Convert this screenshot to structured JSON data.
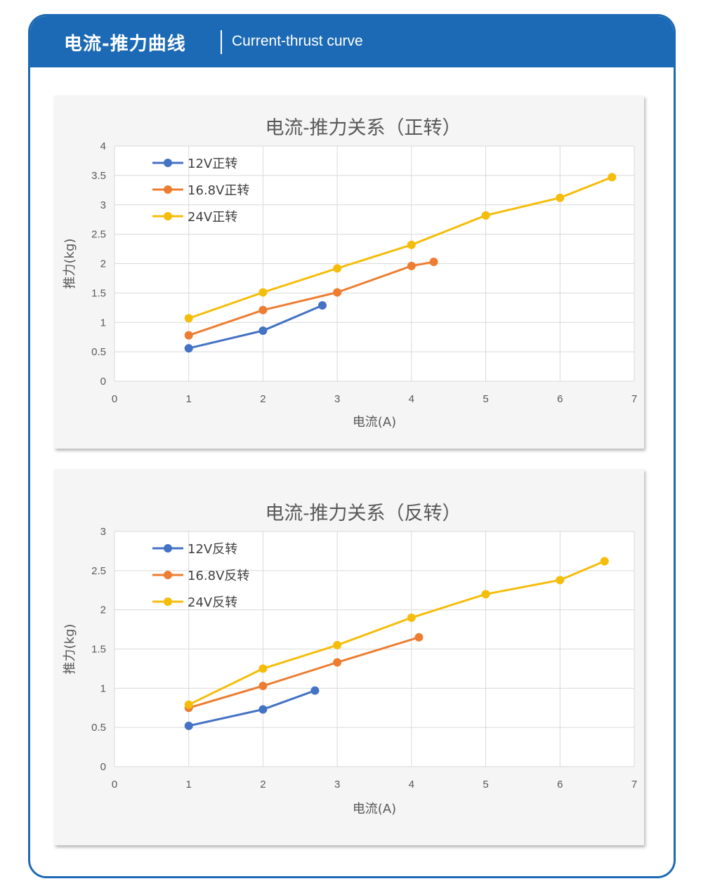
{
  "header": {
    "title_cn": "电流-推力曲线",
    "title_en": "Current-thrust curve"
  },
  "colors": {
    "brand_blue": "#1c6ab5",
    "series_blue": "#4472c4",
    "series_orange": "#ed7d31",
    "series_yellow": "#f5bd0b"
  },
  "chart_data": [
    {
      "type": "line",
      "title": "电流-推力关系（正转）",
      "xlabel": "电流(A)",
      "ylabel": "推力(kg)",
      "xlim": [
        0,
        7
      ],
      "ylim": [
        0,
        4
      ],
      "xticks": [
        "0",
        "1",
        "2",
        "3",
        "4",
        "5",
        "6",
        "7"
      ],
      "yticks": [
        "0",
        "0.5",
        "1",
        "1.5",
        "2",
        "2.5",
        "3",
        "3.5",
        "4"
      ],
      "grid": true,
      "legend_position": "top-left",
      "series": [
        {
          "name": "12V正转",
          "color": "#4472c4",
          "x": [
            1,
            2,
            2.8
          ],
          "y": [
            0.56,
            0.86,
            1.29
          ]
        },
        {
          "name": "16.8V正转",
          "color": "#ed7d31",
          "x": [
            1,
            2,
            3,
            4,
            4.3
          ],
          "y": [
            0.78,
            1.21,
            1.51,
            1.96,
            2.03
          ]
        },
        {
          "name": "24V正转",
          "color": "#f5bd0b",
          "x": [
            1,
            2,
            3,
            4,
            5,
            6,
            6.7
          ],
          "y": [
            1.07,
            1.51,
            1.92,
            2.32,
            2.82,
            3.12,
            3.47
          ]
        }
      ]
    },
    {
      "type": "line",
      "title": "电流-推力关系（反转）",
      "xlabel": "电流(A)",
      "ylabel": "推力(kg)",
      "xlim": [
        0,
        7
      ],
      "ylim": [
        0,
        3
      ],
      "xticks": [
        "0",
        "1",
        "2",
        "3",
        "4",
        "5",
        "6",
        "7"
      ],
      "yticks": [
        "0",
        "0.5",
        "1",
        "1.5",
        "2",
        "2.5",
        "3"
      ],
      "grid": true,
      "legend_position": "top-left",
      "series": [
        {
          "name": "12V反转",
          "color": "#4472c4",
          "x": [
            1,
            2,
            2.7
          ],
          "y": [
            0.52,
            0.73,
            0.97
          ]
        },
        {
          "name": "16.8V反转",
          "color": "#ed7d31",
          "x": [
            1,
            2,
            3,
            4.1
          ],
          "y": [
            0.75,
            1.03,
            1.33,
            1.65
          ]
        },
        {
          "name": "24V反转",
          "color": "#f5bd0b",
          "x": [
            1,
            2,
            3,
            4,
            5,
            6,
            6.6
          ],
          "y": [
            0.79,
            1.25,
            1.55,
            1.9,
            2.2,
            2.38,
            2.62
          ]
        }
      ]
    }
  ]
}
